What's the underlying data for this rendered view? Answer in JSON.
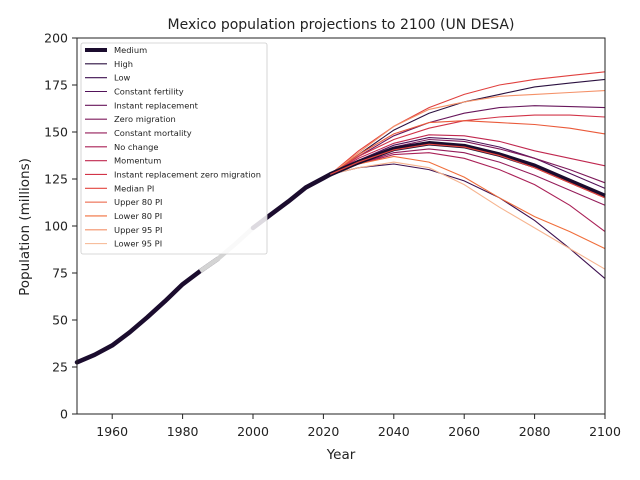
{
  "chart_data": {
    "type": "line",
    "title": "Mexico population projections to 2100 (UN DESA)",
    "xlabel": "Year",
    "ylabel": "Population (millions)",
    "xlim": [
      1950,
      2100
    ],
    "ylim": [
      0,
      200
    ],
    "xticks": [
      1960,
      1980,
      2000,
      2020,
      2040,
      2060,
      2080,
      2100
    ],
    "yticks": [
      0,
      25,
      50,
      75,
      100,
      125,
      150,
      175,
      200
    ],
    "grid": false,
    "legend_position": "top-left",
    "historical": {
      "x": [
        1950,
        1955,
        1960,
        1965,
        1970,
        1975,
        1980,
        1985,
        1990,
        1995,
        2000,
        2005,
        2010,
        2015,
        2020,
        2022
      ],
      "y": [
        27.5,
        31.5,
        36.5,
        43.5,
        51.5,
        60.0,
        69.0,
        76.0,
        82.5,
        90.5,
        99.0,
        106.0,
        113.0,
        120.5,
        125.5,
        127.5
      ]
    },
    "x": [
      2022,
      2030,
      2040,
      2050,
      2060,
      2070,
      2080,
      2090,
      2100
    ],
    "series": [
      {
        "name": "Medium",
        "color": "#1b0c2e",
        "width": 4.5,
        "values": [
          127.5,
          134,
          141,
          144,
          142.5,
          138,
          132,
          124,
          116
        ]
      },
      {
        "name": "High",
        "color": "#2b1140",
        "width": 1.1,
        "values": [
          127.5,
          138,
          151,
          160,
          166,
          170,
          174,
          176,
          178
        ]
      },
      {
        "name": "Low",
        "color": "#3e1150",
        "width": 1.1,
        "values": [
          127.5,
          131,
          133,
          130,
          124,
          115,
          103,
          88,
          72
        ]
      },
      {
        "name": "Constant fertility",
        "color": "#52135a",
        "width": 1.1,
        "values": [
          127.5,
          135,
          143,
          147,
          146,
          142,
          136,
          128,
          120
        ]
      },
      {
        "name": "Instant replacement",
        "color": "#68175c",
        "width": 1.1,
        "values": [
          127.5,
          137,
          148,
          155,
          160,
          163,
          164,
          163.5,
          163
        ]
      },
      {
        "name": "Zero migration",
        "color": "#7e1a5b",
        "width": 1.1,
        "values": [
          127.5,
          135,
          142,
          146,
          145,
          141,
          136,
          130,
          123
        ]
      },
      {
        "name": "Constant mortality",
        "color": "#941d5a",
        "width": 1.1,
        "values": [
          127.5,
          133,
          139,
          141,
          139,
          134,
          127,
          119,
          111
        ]
      },
      {
        "name": "No change",
        "color": "#aa2157",
        "width": 1.1,
        "values": [
          127.5,
          133,
          138,
          139,
          136,
          130,
          122,
          111,
          97
        ]
      },
      {
        "name": "Momentum",
        "color": "#c0284f",
        "width": 1.1,
        "values": [
          127.5,
          136,
          144,
          148.5,
          148,
          145,
          140,
          136,
          132
        ]
      },
      {
        "name": "Instant replacement zero migration",
        "color": "#d23448",
        "width": 1.1,
        "values": [
          127.5,
          137,
          146,
          152,
          156,
          158,
          159,
          159,
          158
        ]
      },
      {
        "name": "Median PI",
        "color": "#e2463f",
        "width": 1.1,
        "values": [
          127.5,
          134,
          140.5,
          143.5,
          142,
          137.5,
          131,
          123,
          115
        ]
      },
      {
        "name": "Upper 80 PI",
        "color": "#ea5a3a",
        "width": 1.1,
        "values": [
          127.5,
          138,
          149,
          155,
          156,
          155,
          154,
          152,
          149
        ]
      },
      {
        "name": "Lower 80 PI",
        "color": "#f06f3c",
        "width": 1.1,
        "values": [
          127.5,
          133,
          137,
          134,
          126,
          115,
          105,
          97,
          88
        ]
      },
      {
        "name": "Upper 95 PI",
        "color": "#f49168",
        "width": 1.1,
        "values": [
          127.5,
          139,
          153,
          162,
          166,
          169,
          170,
          171,
          172
        ]
      },
      {
        "name": "Lower 95 PI",
        "color": "#f6b48f",
        "width": 1.1,
        "values": [
          127.5,
          131,
          134,
          131,
          122,
          110,
          99,
          88,
          77
        ]
      }
    ],
    "extra_series": [
      {
        "color": "#e0413f",
        "width": 1.1,
        "values": [
          127.5,
          140,
          153,
          163,
          170,
          175,
          178,
          180,
          182
        ]
      }
    ]
  }
}
